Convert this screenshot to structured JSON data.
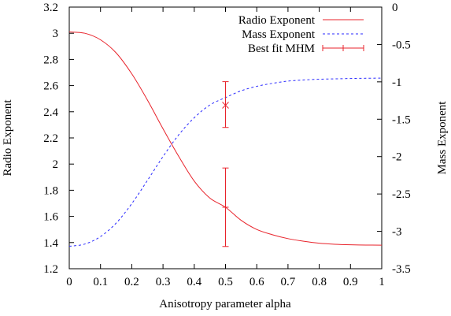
{
  "chart_data": {
    "type": "line",
    "title": "",
    "xlabel": "Anisotropy parameter alpha",
    "ylabel": "Radio Exponent",
    "y2label": "Mass Exponent",
    "xlim": [
      0,
      1
    ],
    "ylim": [
      1.2,
      3.2
    ],
    "y2lim": [
      -3.5,
      0
    ],
    "xticks": [
      0,
      0.1,
      0.2,
      0.3,
      0.4,
      0.5,
      0.6,
      0.7,
      0.8,
      0.9,
      1
    ],
    "yticks": [
      1.2,
      1.4,
      1.6,
      1.8,
      2,
      2.2,
      2.4,
      2.6,
      2.8,
      3,
      3.2
    ],
    "y2ticks": [
      -3.5,
      -3,
      -2.5,
      -2,
      -1.5,
      -1,
      -0.5,
      0
    ],
    "grid": false,
    "legend_position": "top-right",
    "series": [
      {
        "name": "Radio Exponent",
        "axis": "left",
        "style": "solid",
        "color": "#e8232b",
        "x": [
          0,
          0.05,
          0.1,
          0.15,
          0.2,
          0.25,
          0.3,
          0.35,
          0.4,
          0.45,
          0.5,
          0.55,
          0.6,
          0.65,
          0.7,
          0.75,
          0.8,
          0.85,
          0.9,
          0.95,
          1
        ],
        "y": [
          3.01,
          3.0,
          2.95,
          2.85,
          2.69,
          2.49,
          2.27,
          2.06,
          1.87,
          1.74,
          1.67,
          1.57,
          1.5,
          1.46,
          1.43,
          1.41,
          1.395,
          1.387,
          1.383,
          1.381,
          1.38
        ]
      },
      {
        "name": "Mass Exponent",
        "axis": "right",
        "style": "dashed",
        "color": "#2a2aff",
        "x": [
          0,
          0.05,
          0.1,
          0.15,
          0.2,
          0.25,
          0.3,
          0.35,
          0.4,
          0.45,
          0.5,
          0.55,
          0.6,
          0.65,
          0.7,
          0.75,
          0.8,
          0.85,
          0.9,
          0.95,
          1
        ],
        "y": [
          -3.2,
          -3.17,
          -3.07,
          -2.89,
          -2.63,
          -2.32,
          -2.0,
          -1.71,
          -1.48,
          -1.31,
          -1.21,
          -1.12,
          -1.06,
          -1.02,
          -0.99,
          -0.975,
          -0.965,
          -0.96,
          -0.955,
          -0.952,
          -0.95
        ]
      }
    ],
    "errorbars": [
      {
        "name": "Best fit MHM",
        "color": "#e8232b",
        "points": [
          {
            "axis": "left",
            "x": 0.5,
            "y": 1.67,
            "ylow": 1.37,
            "yhigh": 1.97,
            "marker": "plus"
          },
          {
            "axis": "left",
            "x": 0.5,
            "y": 2.45,
            "ylow": 2.28,
            "yhigh": 2.63,
            "marker": "cross"
          }
        ]
      }
    ]
  }
}
